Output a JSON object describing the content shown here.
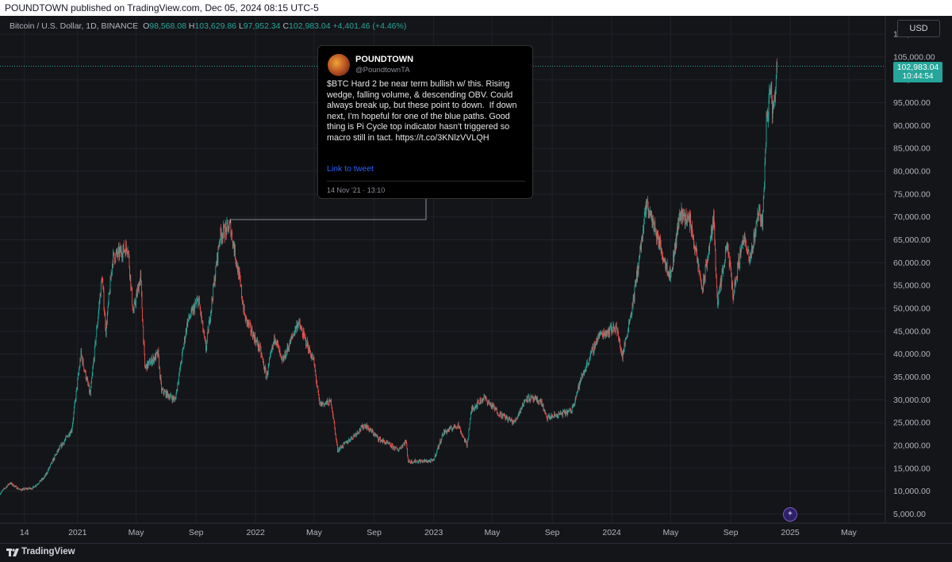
{
  "header": {
    "published": "POUNDTOWN published on TradingView.com, Dec 05, 2024 08:15 UTC-5"
  },
  "legend": {
    "symbol": "Bitcoin / U.S. Dollar, 1D, BINANCE",
    "o_label": "O",
    "o": "98,568.08",
    "h_label": "H",
    "h": "103,629.86",
    "l_label": "L",
    "l": "97,952.34",
    "c_label": "C",
    "c": "102,983.04",
    "change": "+4,401.46 (+4.46%)"
  },
  "currency_button": "USD",
  "last_price": {
    "price": "102,983.04",
    "countdown": "10:44:54"
  },
  "tweet": {
    "name": "POUNDTOWN",
    "handle": "@PoundtownTA",
    "text": "$BTC Hard 2 be near term bullish w/ this. Rising wedge, falling volume, & descending OBV. Could always break up, but these point to down.  If down next, I'm hopeful for one of the blue paths. Good thing is Pi Cycle top indicator hasn't triggered so macro still in tact. https://t.co/3KNlzVVLQH",
    "link_label": "Link to tweet",
    "date": "14 Nov '21 · 13:10"
  },
  "footer": {
    "brand": "TradingView"
  },
  "colors": {
    "up": "#26a69a",
    "down": "#ef5350",
    "background": "#141519",
    "grid": "#1f2229",
    "axis_text": "#b2b5be"
  },
  "chart_data": {
    "type": "candlestick",
    "title": "Bitcoin / U.S. Dollar, 1D, BINANCE",
    "y_ticks": [
      "5,000.00",
      "10,000.00",
      "15,000.00",
      "20,000.00",
      "25,000.00",
      "30,000.00",
      "35,000.00",
      "40,000.00",
      "45,000.00",
      "50,000.00",
      "55,000.00",
      "60,000.00",
      "65,000.00",
      "70,000.00",
      "75,000.00",
      "80,000.00",
      "85,000.00",
      "90,000.00",
      "95,000.00",
      "100,000.00",
      "105,000.00",
      "110,000.00"
    ],
    "x_ticks": [
      {
        "label": "14",
        "date": "2020-09-14"
      },
      {
        "label": "2021",
        "date": "2021-01-01"
      },
      {
        "label": "May",
        "date": "2021-05-01"
      },
      {
        "label": "Sep",
        "date": "2021-09-01"
      },
      {
        "label": "2022",
        "date": "2022-01-01"
      },
      {
        "label": "May",
        "date": "2022-05-01"
      },
      {
        "label": "Sep",
        "date": "2022-09-01"
      },
      {
        "label": "2023",
        "date": "2023-01-01"
      },
      {
        "label": "May",
        "date": "2023-05-01"
      },
      {
        "label": "Sep",
        "date": "2023-09-01"
      },
      {
        "label": "2024",
        "date": "2024-01-01"
      },
      {
        "label": "May",
        "date": "2024-05-01"
      },
      {
        "label": "Sep",
        "date": "2024-09-01"
      },
      {
        "label": "2025",
        "date": "2025-01-01"
      },
      {
        "label": "May",
        "date": "2025-05-01"
      }
    ],
    "x_range": [
      "2020-07-26",
      "2025-07-15"
    ],
    "ylim": [
      3000,
      114000
    ],
    "grid": true,
    "series": [
      {
        "points": [
          [
            "2020-07-26",
            9500
          ],
          [
            "2020-08-15",
            11800
          ],
          [
            "2020-09-05",
            10300
          ],
          [
            "2020-10-01",
            10700
          ],
          [
            "2020-10-25",
            13000
          ],
          [
            "2020-11-20",
            18500
          ],
          [
            "2020-12-20",
            23500
          ],
          [
            "2021-01-08",
            40000
          ],
          [
            "2021-01-27",
            31000
          ],
          [
            "2021-02-20",
            57000
          ],
          [
            "2021-02-28",
            45000
          ],
          [
            "2021-03-14",
            61000
          ],
          [
            "2021-04-14",
            63500
          ],
          [
            "2021-04-25",
            49000
          ],
          [
            "2021-05-10",
            57000
          ],
          [
            "2021-05-19",
            37000
          ],
          [
            "2021-06-15",
            40000
          ],
          [
            "2021-06-22",
            32000
          ],
          [
            "2021-07-20",
            30000
          ],
          [
            "2021-08-14",
            47000
          ],
          [
            "2021-09-06",
            52000
          ],
          [
            "2021-09-21",
            41000
          ],
          [
            "2021-10-20",
            66000
          ],
          [
            "2021-11-10",
            68000
          ],
          [
            "2021-11-28",
            57000
          ],
          [
            "2021-12-10",
            48000
          ],
          [
            "2022-01-10",
            41000
          ],
          [
            "2022-01-23",
            35000
          ],
          [
            "2022-02-10",
            44000
          ],
          [
            "2022-02-24",
            38000
          ],
          [
            "2022-03-29",
            47000
          ],
          [
            "2022-04-30",
            38500
          ],
          [
            "2022-05-12",
            29000
          ],
          [
            "2022-06-05",
            29500
          ],
          [
            "2022-06-18",
            19000
          ],
          [
            "2022-07-10",
            21000
          ],
          [
            "2022-08-13",
            24500
          ],
          [
            "2022-09-10",
            21500
          ],
          [
            "2022-10-20",
            19000
          ],
          [
            "2022-11-05",
            21000
          ],
          [
            "2022-11-10",
            16500
          ],
          [
            "2022-12-31",
            16600
          ],
          [
            "2023-01-21",
            22800
          ],
          [
            "2023-02-20",
            24500
          ],
          [
            "2023-03-10",
            20000
          ],
          [
            "2023-03-20",
            28000
          ],
          [
            "2023-04-14",
            30500
          ],
          [
            "2023-05-15",
            27000
          ],
          [
            "2023-06-15",
            25000
          ],
          [
            "2023-07-10",
            30500
          ],
          [
            "2023-08-10",
            29500
          ],
          [
            "2023-08-20",
            26000
          ],
          [
            "2023-10-10",
            27500
          ],
          [
            "2023-10-30",
            34500
          ],
          [
            "2023-12-05",
            44000
          ],
          [
            "2024-01-10",
            46000
          ],
          [
            "2024-01-23",
            39500
          ],
          [
            "2024-02-14",
            51500
          ],
          [
            "2024-03-13",
            73000
          ],
          [
            "2024-04-17",
            61000
          ],
          [
            "2024-05-01",
            57000
          ],
          [
            "2024-05-20",
            71000
          ],
          [
            "2024-06-10",
            69000
          ],
          [
            "2024-07-05",
            54000
          ],
          [
            "2024-07-28",
            69500
          ],
          [
            "2024-08-05",
            51000
          ],
          [
            "2024-08-25",
            64000
          ],
          [
            "2024-09-06",
            53000
          ],
          [
            "2024-09-27",
            66000
          ],
          [
            "2024-10-10",
            60000
          ],
          [
            "2024-10-29",
            72000
          ],
          [
            "2024-11-05",
            68000
          ],
          [
            "2024-11-13",
            90000
          ],
          [
            "2024-11-22",
            99000
          ],
          [
            "2024-11-26",
            92000
          ],
          [
            "2024-12-05",
            102983
          ]
        ]
      }
    ]
  }
}
